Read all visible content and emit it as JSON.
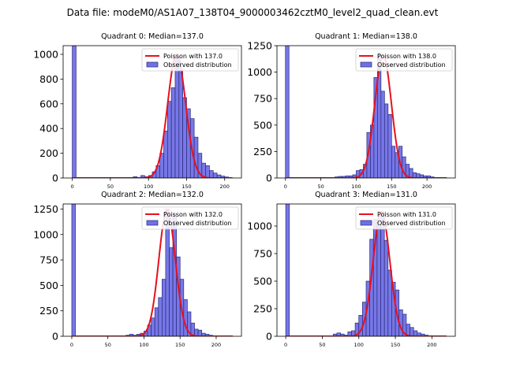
{
  "figure": {
    "suptitle": "Data file: modeM0/AS1A07_138T04_9000003462cztM0_level2_quad_clean.evt",
    "colors": {
      "hist_fill": "#7070e6",
      "hist_edge": "#2a2a7a",
      "poisson_line": "#e8101c"
    }
  },
  "chart_data": [
    {
      "type": "bar",
      "title": "Quadrant 0: Median=137.0",
      "legend": {
        "placement": "top-right",
        "entries": [
          "Poisson with 137.0",
          "Observed distribution"
        ]
      },
      "xlim": [
        -12,
        222
      ],
      "ylim": [
        0,
        1070
      ],
      "xticks": [
        0,
        50,
        100,
        150,
        200
      ],
      "yticks": [
        0,
        200,
        400,
        600,
        800,
        1000
      ],
      "poisson_mean": 137.0,
      "poisson_peak": 1000,
      "bins": {
        "start": 0,
        "width": 5
      },
      "values": [
        1070,
        0,
        0,
        0,
        0,
        0,
        0,
        0,
        0,
        0,
        0,
        0,
        0,
        0,
        0,
        0,
        10,
        5,
        20,
        10,
        20,
        50,
        100,
        200,
        380,
        620,
        730,
        980,
        870,
        650,
        560,
        480,
        330,
        200,
        120,
        100,
        60,
        40,
        25,
        15,
        8,
        3,
        0
      ]
    },
    {
      "type": "bar",
      "title": "Quadrant 1: Median=138.0",
      "legend": {
        "placement": "top-right",
        "entries": [
          "Poisson with 138.0",
          "Observed distribution"
        ]
      },
      "xlim": [
        -12,
        240
      ],
      "ylim": [
        0,
        1250
      ],
      "xticks": [
        0,
        50,
        100,
        150,
        200
      ],
      "yticks": [
        0,
        250,
        500,
        750,
        1000,
        1250
      ],
      "poisson_mean": 138.0,
      "poisson_peak": 1160,
      "bins": {
        "start": 0,
        "width": 5
      },
      "values": [
        1250,
        0,
        0,
        0,
        0,
        0,
        0,
        0,
        0,
        0,
        0,
        0,
        0,
        5,
        10,
        15,
        15,
        20,
        20,
        30,
        70,
        80,
        130,
        430,
        500,
        950,
        1170,
        820,
        700,
        600,
        300,
        240,
        300,
        200,
        130,
        90,
        50,
        40,
        30,
        20,
        20,
        10,
        5,
        5,
        0
      ]
    },
    {
      "type": "bar",
      "title": "Quadrant 2: Median=132.0",
      "legend": {
        "placement": "top-right",
        "entries": [
          "Poisson with 132.0",
          "Observed distribution"
        ]
      },
      "xlim": [
        -12,
        235
      ],
      "ylim": [
        0,
        1300
      ],
      "xticks": [
        0,
        50,
        100,
        150,
        200
      ],
      "yticks": [
        0,
        250,
        500,
        750,
        1000,
        1250
      ],
      "poisson_mean": 132.0,
      "poisson_peak": 1240,
      "bins": {
        "start": 0,
        "width": 5
      },
      "values": [
        1300,
        0,
        0,
        0,
        0,
        0,
        0,
        0,
        0,
        0,
        0,
        0,
        0,
        0,
        0,
        10,
        20,
        10,
        20,
        30,
        50,
        110,
        180,
        280,
        380,
        560,
        1250,
        870,
        1200,
        780,
        560,
        360,
        240,
        130,
        70,
        60,
        30,
        20,
        10,
        5,
        3,
        0,
        0,
        0
      ]
    },
    {
      "type": "bar",
      "title": "Quadrant 3: Median=131.0",
      "legend": {
        "placement": "top-right",
        "entries": [
          "Poisson with 131.0",
          "Observed distribution"
        ]
      },
      "xlim": [
        -12,
        232
      ],
      "ylim": [
        0,
        1200
      ],
      "xticks": [
        0,
        50,
        100,
        150,
        200
      ],
      "yticks": [
        0,
        250,
        500,
        750,
        1000
      ],
      "poisson_mean": 131.0,
      "poisson_peak": 1130,
      "bins": {
        "start": 0,
        "width": 5
      },
      "values": [
        1200,
        0,
        0,
        0,
        0,
        0,
        0,
        0,
        0,
        0,
        0,
        0,
        0,
        20,
        30,
        20,
        10,
        40,
        50,
        120,
        190,
        310,
        500,
        880,
        1060,
        1000,
        1130,
        870,
        600,
        490,
        420,
        240,
        200,
        110,
        80,
        50,
        30,
        20,
        10,
        5,
        3,
        0
      ]
    }
  ]
}
